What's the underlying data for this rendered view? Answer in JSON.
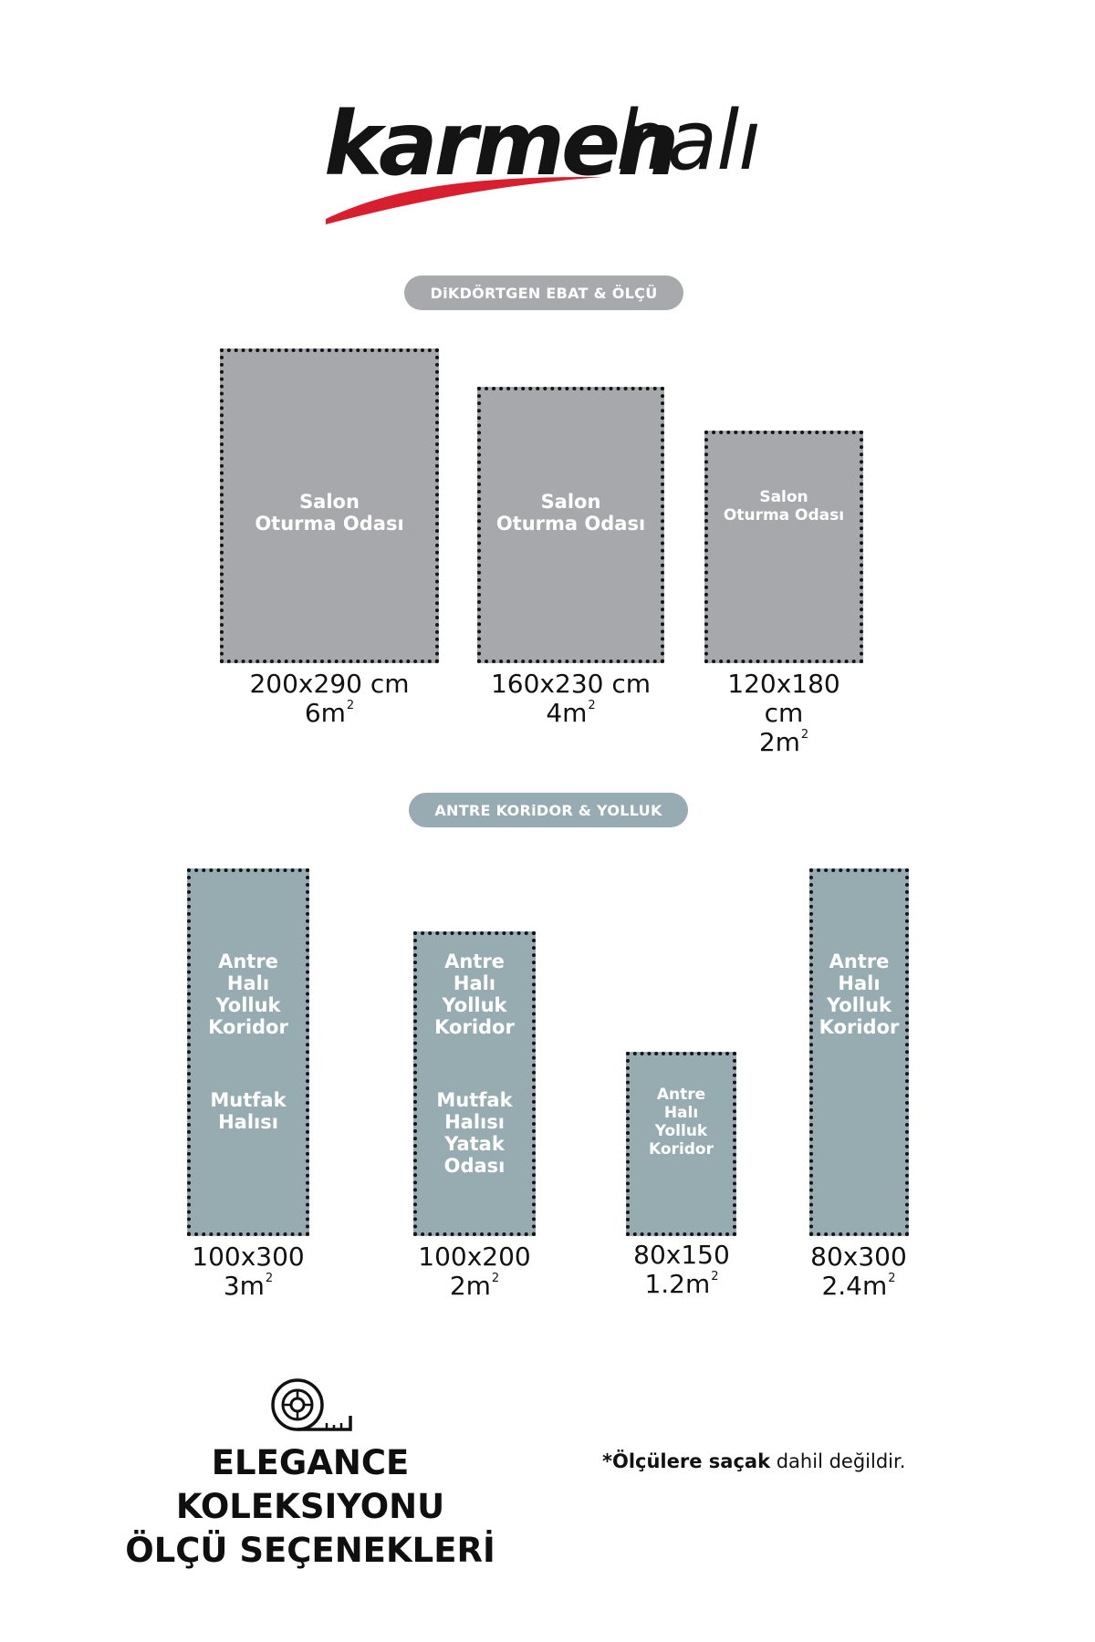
{
  "brand": {
    "name_bold": "karmen",
    "name_light": "halı",
    "swoosh_color": "#d71f30"
  },
  "sections": {
    "rectangular": {
      "label": "DiKDÖRTGEN EBAT & ÖLÇÜ"
    },
    "runner": {
      "label": "ANTRE KORiDOR & YOLLUK"
    }
  },
  "rectangular_rugs": [
    {
      "text": "Salon\nOturma Odası",
      "size": "200x290 cm",
      "area": "6m",
      "area_sup": "2"
    },
    {
      "text": "Salon\nOturma Odası",
      "size": "160x230 cm",
      "area": "4m",
      "area_sup": "2"
    },
    {
      "text": "Salon\nOturma Odası",
      "size": "120x180 cm",
      "area": "2m",
      "area_sup": "2"
    }
  ],
  "runner_rugs": [
    {
      "text_top": "Antre\nHalı\nYolluk\nKoridor",
      "text_bottom": "Mutfak\nHalısı",
      "size": "100x300",
      "area": "3m",
      "area_sup": "2"
    },
    {
      "text_top": "Antre\nHalı\nYolluk\nKoridor",
      "text_bottom": "Mutfak\nHalısı\nYatak\nOdası",
      "size": "100x200",
      "area": "2m",
      "area_sup": "2"
    },
    {
      "text_top": "Antre\nHalı\nYolluk\nKoridor",
      "text_bottom": "",
      "size": "80x150",
      "area": "1.2m",
      "area_sup": "2"
    },
    {
      "text_top": "Antre\nHalı\nYolluk\nKoridor",
      "text_bottom": "",
      "size": "80x300",
      "area": "2.4m",
      "area_sup": "2"
    }
  ],
  "footer": {
    "icon": "tape-measure-icon",
    "title_line1": "ELEGANCE KOLEKSIYONU",
    "title_line2": "ÖLÇÜ SEÇENEKLERİ",
    "note_bold": "*Ölçülere saçak",
    "note_rest": " dahil değildir."
  }
}
